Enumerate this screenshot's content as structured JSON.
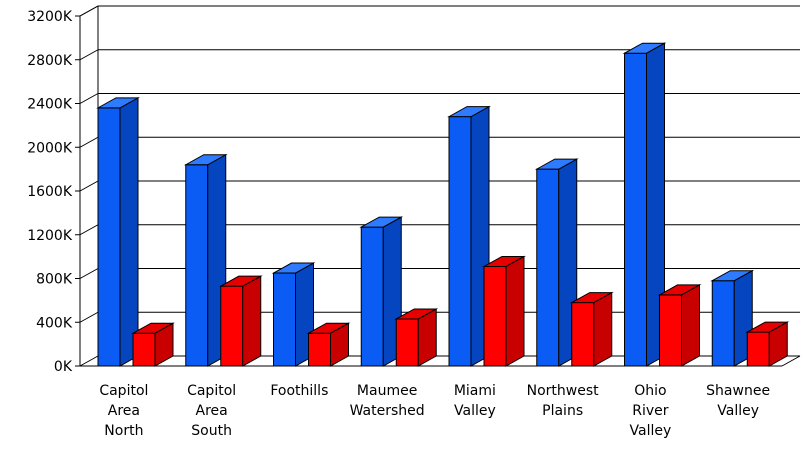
{
  "chart_data": {
    "type": "bar",
    "title": "",
    "xlabel": "",
    "ylabel": "",
    "categories": [
      [
        "Capitol",
        "Area",
        "North"
      ],
      [
        "Capitol",
        "Area",
        "South"
      ],
      [
        "Foothills"
      ],
      [
        "Maumee",
        "Watershed"
      ],
      [
        "Miami",
        "Valley"
      ],
      [
        "Northwest",
        "Plains"
      ],
      [
        "Ohio",
        "River",
        "Valley"
      ],
      [
        "Shawnee",
        "Valley"
      ]
    ],
    "series": [
      {
        "values": [
          2360000,
          1840000,
          850000,
          1270000,
          2280000,
          1800000,
          2860000,
          780000
        ]
      },
      {
        "values": [
          300000,
          730000,
          300000,
          430000,
          910000,
          580000,
          650000,
          310000
        ]
      }
    ],
    "ylim": [
      0,
      3200000
    ],
    "yticks": [
      0,
      400000,
      800000,
      1200000,
      1600000,
      2000000,
      2400000,
      2800000,
      3200000
    ],
    "ytick_labels": [
      "0K",
      "400K",
      "800K",
      "1200K",
      "1600K",
      "2000K",
      "2400K",
      "2800K",
      "3200K"
    ],
    "grid": true,
    "legend": "none",
    "colors": {
      "series_0_front": "#0a5cf5",
      "series_0_side": "#0645c0",
      "series_0_top": "#2f7bff",
      "series_1_front": "#ff0000",
      "series_1_side": "#c80000",
      "series_1_top": "#e60000",
      "grid": "#000000"
    }
  }
}
